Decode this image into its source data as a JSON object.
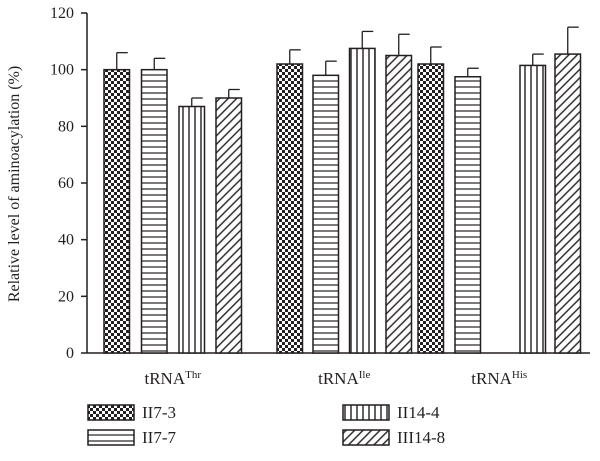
{
  "chart_data": {
    "type": "bar",
    "ylabel": "Relative level of aminoacylation (%)",
    "ylim": [
      0,
      120
    ],
    "yticks": [
      0,
      20,
      40,
      60,
      80,
      100,
      120
    ],
    "categories": [
      {
        "base": "tRNA",
        "sup": "Thr"
      },
      {
        "base": "tRNA",
        "sup": "Ile"
      },
      {
        "base": "tRNA",
        "sup": "His"
      }
    ],
    "series": [
      {
        "name": "II7-3",
        "pattern": "checker",
        "values": [
          100,
          102,
          102
        ],
        "errors": [
          6,
          5,
          6
        ]
      },
      {
        "name": "II7-7",
        "pattern": "hlines",
        "values": [
          100,
          98,
          97.5
        ],
        "errors": [
          4,
          5,
          3
        ]
      },
      {
        "name": "II14-4",
        "pattern": "vlines",
        "values": [
          87,
          107.5,
          101.5
        ],
        "errors": [
          3,
          6,
          4
        ]
      },
      {
        "name": "III14-8",
        "pattern": "diagonal",
        "values": [
          90,
          105,
          105.5
        ],
        "errors": [
          3,
          7.5,
          9.5
        ]
      }
    ],
    "legend_position": "bottom",
    "grid": false,
    "colors": {
      "ink": "#231f20",
      "fill": "#ffffff"
    }
  }
}
